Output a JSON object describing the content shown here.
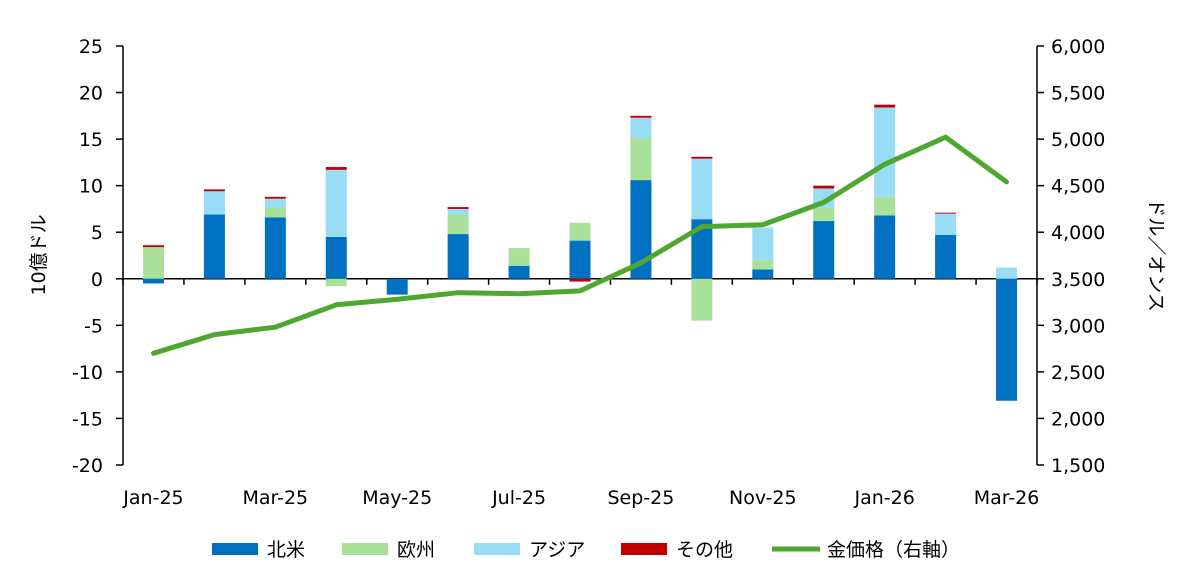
{
  "chart_data": {
    "type": "bar",
    "subtype": "stacked-bar-with-line-secondary-axis",
    "title": "",
    "ylabel": "10億ドル",
    "y2label": "ドル／オンス",
    "xlabel": "",
    "ylim": [
      -20,
      25
    ],
    "yticks": [
      -20,
      -15,
      -10,
      -5,
      0,
      5,
      10,
      15,
      20,
      25
    ],
    "y2lim": [
      1500,
      6000
    ],
    "y2ticks": [
      "1,500",
      "2,000",
      "2,500",
      "3,000",
      "3,500",
      "4,000",
      "4,500",
      "5,000",
      "5,500",
      "6,000"
    ],
    "y2tick_values": [
      1500,
      2000,
      2500,
      3000,
      3500,
      4000,
      4500,
      5000,
      5500,
      6000
    ],
    "categories": [
      "Jan-25",
      "Feb-25",
      "Mar-25",
      "Apr-25",
      "May-25",
      "Jun-25",
      "Jul-25",
      "Aug-25",
      "Sep-25",
      "Oct-25",
      "Nov-25",
      "Dec-25",
      "Jan-26",
      "Feb-26",
      "Mar-26"
    ],
    "xtick_labels": [
      "Jan-25",
      "Mar-25",
      "May-25",
      "Jul-25",
      "Sep-25",
      "Nov-25",
      "Jan-26",
      "Mar-26"
    ],
    "series": [
      {
        "name": "北米",
        "color": "#0070c0",
        "values": [
          -0.5,
          6.9,
          6.6,
          4.5,
          -1.7,
          4.8,
          1.4,
          4.1,
          10.6,
          6.4,
          1.0,
          6.2,
          6.8,
          4.7,
          -13.1
        ]
      },
      {
        "name": "欧州",
        "color": "#a9e09a",
        "values": [
          3.4,
          0.0,
          1.0,
          -0.8,
          0.0,
          2.1,
          1.9,
          1.9,
          4.5,
          -4.5,
          1.0,
          1.4,
          2.0,
          0.0,
          0.0
        ]
      },
      {
        "name": "アジア",
        "color": "#98dcf5",
        "values": [
          0.0,
          2.5,
          1.0,
          7.2,
          0.0,
          0.6,
          0.0,
          0.0,
          2.2,
          6.5,
          3.5,
          2.1,
          9.6,
          2.3,
          1.2
        ]
      },
      {
        "name": "その他",
        "color": "#c00000",
        "values": [
          0.2,
          0.2,
          0.2,
          0.3,
          0.0,
          0.2,
          0.0,
          -0.3,
          0.2,
          0.2,
          0.0,
          0.3,
          0.3,
          0.1,
          0.0
        ]
      }
    ],
    "line": {
      "name": "金価格（右軸）",
      "color": "#4ea72e",
      "axis": "right",
      "values": [
        2700,
        2900,
        2980,
        3220,
        3280,
        3350,
        3340,
        3370,
        3670,
        4060,
        4080,
        4320,
        4730,
        5020,
        4540
      ]
    },
    "legend": {
      "position": "bottom"
    },
    "grid": false
  }
}
